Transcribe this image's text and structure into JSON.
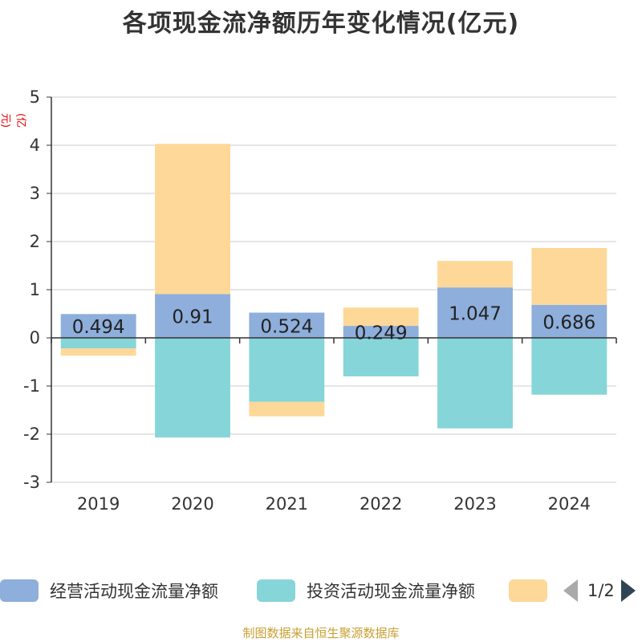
{
  "title": "各项现金流净额历年变化情况(亿元)",
  "y_unit": "(亿元)",
  "source": "制图数据来自恒生聚源数据库",
  "legend": {
    "items": [
      {
        "label": "经营活动现金流量净额",
        "color": "#8eaedb"
      },
      {
        "label": "投资活动现金流量净额",
        "color": "#86d5d8"
      },
      {
        "label": "",
        "color": "#fed898"
      }
    ],
    "page": "1/2"
  },
  "chart_data": {
    "type": "bar",
    "stacked": true,
    "categories": [
      "2019",
      "2020",
      "2021",
      "2022",
      "2023",
      "2024"
    ],
    "ylim": [
      -3,
      5
    ],
    "yticks": [
      -3,
      -2,
      -1,
      0,
      1,
      2,
      3,
      4,
      5
    ],
    "grid": true,
    "series": [
      {
        "name": "经营活动现金流量净额",
        "color": "#8eaedb",
        "values": [
          0.494,
          0.91,
          0.524,
          0.249,
          1.047,
          0.686
        ],
        "labels": [
          "0.494",
          "0.91",
          "0.524",
          "0.249",
          "1.047",
          "0.686"
        ]
      },
      {
        "name": "投资活动现金流量净额",
        "color": "#86d5d8",
        "values": [
          -0.22,
          -2.07,
          -1.33,
          -0.8,
          -1.88,
          -1.18
        ]
      },
      {
        "name": "",
        "color": "#fed898",
        "values": [
          -0.15,
          3.12,
          -0.3,
          0.38,
          0.55,
          1.18
        ]
      }
    ]
  }
}
